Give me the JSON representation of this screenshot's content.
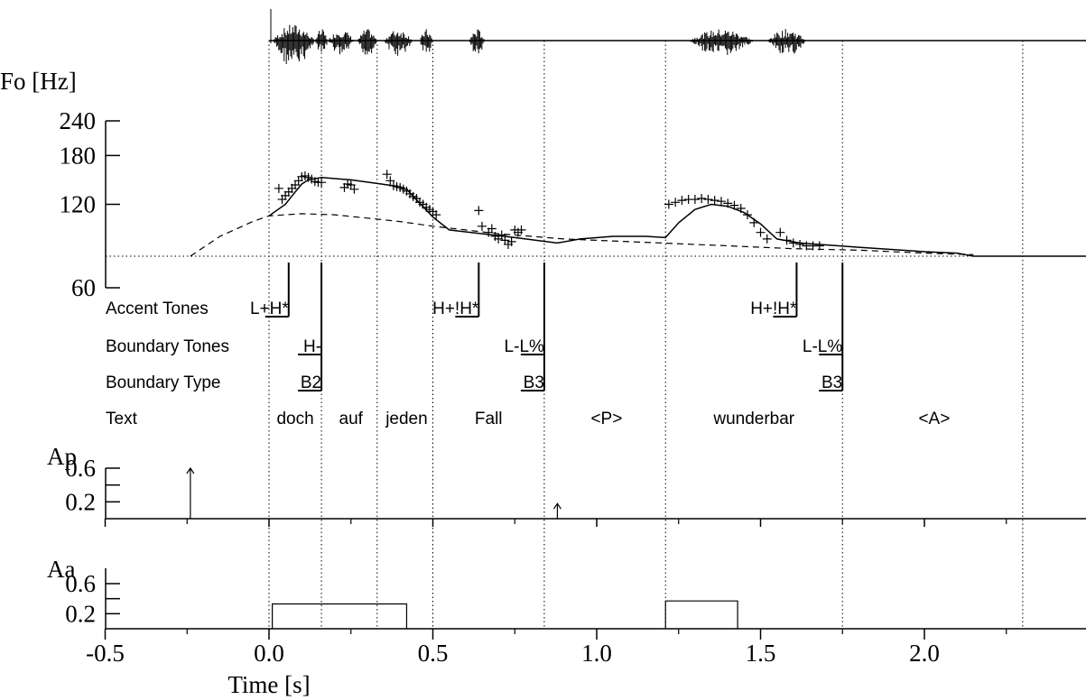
{
  "chart_data": {
    "type": "line",
    "title": "",
    "x_axis": {
      "label": "Time [s]",
      "range": [
        -0.5,
        2.5
      ],
      "tick_labels": [
        "-0.5",
        "0.0",
        "0.5",
        "1.0",
        "1.5",
        "2.0"
      ],
      "tick_values": [
        -0.5,
        0.0,
        0.5,
        1.0,
        1.5,
        2.0
      ]
    },
    "panels": {
      "f0": {
        "ylabel": "Fo [Hz]",
        "scale": "log",
        "ylim": [
          60,
          240
        ],
        "tick_labels": [
          "240",
          "180",
          "120",
          "60"
        ],
        "tick_values": [
          240,
          180,
          120,
          60
        ],
        "baseline_hz": 78,
        "model_contour": [
          [
            0.0,
            109
          ],
          [
            0.05,
            120
          ],
          [
            0.08,
            133
          ],
          [
            0.1,
            142
          ],
          [
            0.12,
            147
          ],
          [
            0.16,
            150
          ],
          [
            0.25,
            147
          ],
          [
            0.38,
            140
          ],
          [
            0.42,
            136
          ],
          [
            0.5,
            108
          ],
          [
            0.55,
            97
          ],
          [
            0.65,
            94
          ],
          [
            0.75,
            91
          ],
          [
            0.88,
            87
          ],
          [
            0.95,
            90
          ],
          [
            1.05,
            92
          ],
          [
            1.15,
            92
          ],
          [
            1.21,
            91
          ],
          [
            1.25,
            103
          ],
          [
            1.3,
            115
          ],
          [
            1.35,
            120
          ],
          [
            1.4,
            118
          ],
          [
            1.45,
            112
          ],
          [
            1.5,
            102
          ],
          [
            1.55,
            90
          ],
          [
            1.62,
            87
          ],
          [
            1.8,
            84
          ],
          [
            2.0,
            81
          ],
          [
            2.1,
            80
          ],
          [
            2.15,
            78
          ],
          [
            2.3,
            78
          ],
          [
            2.5,
            78
          ]
        ],
        "phrase_component": [
          [
            -0.24,
            78
          ],
          [
            -0.15,
            92
          ],
          [
            -0.05,
            104
          ],
          [
            0.0,
            109
          ],
          [
            0.1,
            111
          ],
          [
            0.2,
            110
          ],
          [
            0.3,
            107
          ],
          [
            0.4,
            104
          ],
          [
            0.5,
            100
          ],
          [
            0.6,
            97
          ],
          [
            0.7,
            94
          ],
          [
            0.8,
            92
          ],
          [
            0.9,
            90
          ],
          [
            1.0,
            89
          ],
          [
            1.1,
            88
          ],
          [
            1.2,
            87
          ],
          [
            1.3,
            86
          ],
          [
            1.4,
            85
          ],
          [
            1.5,
            84
          ],
          [
            1.6,
            83
          ],
          [
            1.8,
            82
          ],
          [
            2.0,
            80
          ],
          [
            2.15,
            79
          ]
        ],
        "measured_f0": [
          [
            0.03,
            137
          ],
          [
            0.04,
            125
          ],
          [
            0.05,
            129
          ],
          [
            0.06,
            133
          ],
          [
            0.07,
            137
          ],
          [
            0.08,
            141
          ],
          [
            0.09,
            146
          ],
          [
            0.1,
            151
          ],
          [
            0.11,
            152
          ],
          [
            0.12,
            150
          ],
          [
            0.13,
            148
          ],
          [
            0.14,
            145
          ],
          [
            0.15,
            144
          ],
          [
            0.16,
            144
          ],
          [
            0.23,
            138
          ],
          [
            0.24,
            142
          ],
          [
            0.25,
            141
          ],
          [
            0.26,
            136
          ],
          [
            0.36,
            154
          ],
          [
            0.37,
            146
          ],
          [
            0.38,
            140
          ],
          [
            0.39,
            139
          ],
          [
            0.4,
            138
          ],
          [
            0.41,
            136
          ],
          [
            0.42,
            134
          ],
          [
            0.43,
            131
          ],
          [
            0.44,
            128
          ],
          [
            0.45,
            126
          ],
          [
            0.46,
            122
          ],
          [
            0.47,
            120
          ],
          [
            0.48,
            117
          ],
          [
            0.49,
            115
          ],
          [
            0.5,
            113
          ],
          [
            0.51,
            110
          ],
          [
            0.64,
            114
          ],
          [
            0.65,
            100
          ],
          [
            0.67,
            95
          ],
          [
            0.68,
            98
          ],
          [
            0.69,
            92
          ],
          [
            0.7,
            90
          ],
          [
            0.71,
            93
          ],
          [
            0.72,
            89
          ],
          [
            0.73,
            86
          ],
          [
            0.74,
            88
          ],
          [
            0.75,
            97
          ],
          [
            0.76,
            95
          ],
          [
            0.77,
            97
          ],
          [
            1.22,
            120
          ],
          [
            1.24,
            122
          ],
          [
            1.26,
            124
          ],
          [
            1.28,
            125
          ],
          [
            1.3,
            125
          ],
          [
            1.32,
            126
          ],
          [
            1.34,
            125
          ],
          [
            1.36,
            124
          ],
          [
            1.38,
            123
          ],
          [
            1.4,
            121
          ],
          [
            1.42,
            119
          ],
          [
            1.44,
            116
          ],
          [
            1.46,
            110
          ],
          [
            1.48,
            103
          ],
          [
            1.5,
            95
          ],
          [
            1.52,
            90
          ],
          [
            1.56,
            95
          ],
          [
            1.58,
            89
          ],
          [
            1.6,
            87
          ],
          [
            1.62,
            86
          ],
          [
            1.64,
            85
          ],
          [
            1.66,
            85
          ],
          [
            1.68,
            85
          ]
        ]
      },
      "ap": {
        "ylabel": "Ap",
        "tick_labels": [
          "0.6",
          "0.2"
        ],
        "tick_values": [
          0.6,
          0.2
        ],
        "ylim": [
          0,
          0.8
        ],
        "impulses": [
          {
            "t": -0.24,
            "value": 0.6
          },
          {
            "t": 0.88,
            "value": 0.18
          }
        ]
      },
      "aa": {
        "ylabel": "Aa",
        "tick_labels": [
          "0.6",
          "0.2"
        ],
        "tick_values": [
          0.6,
          0.2
        ],
        "ylim": [
          0,
          0.8
        ],
        "pulses": [
          {
            "t_on": 0.01,
            "t_off": 0.42,
            "value": 0.33
          },
          {
            "t_on": 1.21,
            "t_off": 1.43,
            "value": 0.37
          }
        ]
      }
    },
    "boundaries": [
      0.0,
      0.16,
      0.33,
      0.5,
      0.84,
      1.21,
      1.75,
      2.3
    ],
    "tiers": {
      "labels": [
        "Accent Tones",
        "Boundary Tones",
        "Boundary Type",
        "Text"
      ],
      "accent_tones": [
        {
          "t": 0.06,
          "label": "L+H*"
        },
        {
          "t": 0.64,
          "label": "H+!H*"
        },
        {
          "t": 1.61,
          "label": "H+!H*"
        }
      ],
      "boundary_tones": [
        {
          "t": 0.16,
          "label": "H-"
        },
        {
          "t": 0.84,
          "label": "L-L%"
        },
        {
          "t": 1.75,
          "label": "L-L%"
        }
      ],
      "boundary_types": [
        {
          "t": 0.16,
          "label": "B2"
        },
        {
          "t": 0.84,
          "label": "B3"
        },
        {
          "t": 1.75,
          "label": "B3"
        }
      ],
      "text": [
        {
          "t": 0.08,
          "label": "doch"
        },
        {
          "t": 0.25,
          "label": "auf"
        },
        {
          "t": 0.42,
          "label": "jeden"
        },
        {
          "t": 0.67,
          "label": "Fall"
        },
        {
          "t": 1.03,
          "label": "<P>"
        },
        {
          "t": 1.48,
          "label": "wunderbar"
        },
        {
          "t": 2.03,
          "label": "<A>"
        }
      ]
    },
    "waveform_segments": [
      [
        0.01,
        0.14
      ],
      [
        0.14,
        0.18
      ],
      [
        0.18,
        0.26
      ],
      [
        0.27,
        0.33
      ],
      [
        0.35,
        0.44
      ],
      [
        0.46,
        0.5
      ],
      [
        0.61,
        0.66
      ],
      [
        1.28,
        1.48
      ],
      [
        1.52,
        1.64
      ]
    ]
  }
}
